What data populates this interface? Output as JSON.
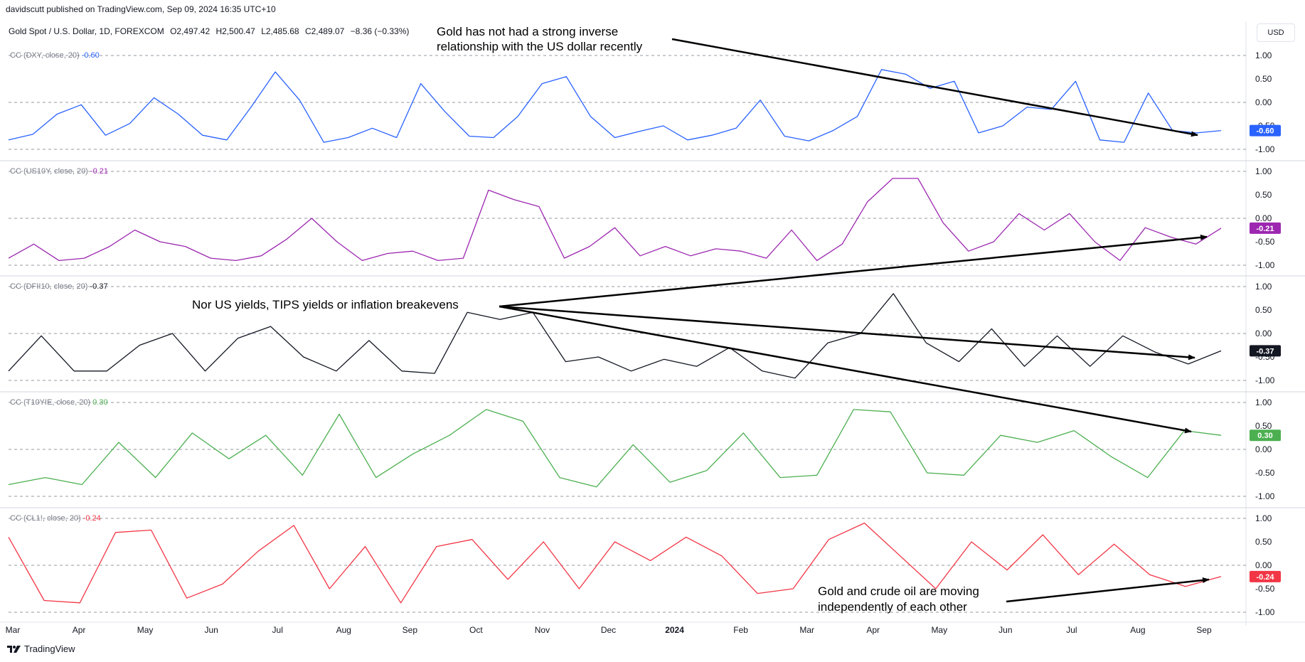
{
  "publisher": "davidscutt published on TradingView.com, Sep 09, 2024 16:35 UTC+10",
  "header": {
    "symbol": "Gold Spot / U.S. Dollar, 1D, FOREXCOM",
    "open": "O2,497.42",
    "high": "H2,500.47",
    "low": "L2,485.68",
    "close": "C2,489.07",
    "change": "−8.36 (−0.33%)"
  },
  "currency_button": "USD",
  "footer": {
    "brand": "TradingView"
  },
  "annotations": {
    "dxy_line1": "Gold has not had a strong inverse",
    "dxy_line2": "relationship with the US dollar recently",
    "yields": "Nor US yields, TIPS yields or inflation breakevens",
    "oil_line1": "Gold and crude oil are moving",
    "oil_line2": "independently of each other"
  },
  "chart_data": {
    "type": "line",
    "x_tick_labels": [
      "Mar",
      "Apr",
      "May",
      "Jun",
      "Jul",
      "Aug",
      "Sep",
      "Oct",
      "Nov",
      "Dec",
      "2024",
      "Feb",
      "Mar",
      "Apr",
      "May",
      "Jun",
      "Jul",
      "Aug",
      "Sep"
    ],
    "x_range": [
      "2023-03",
      "2024-09"
    ],
    "y_ticks": [
      "1.00",
      "0.50",
      "0.00",
      "-0.50",
      "-1.00"
    ],
    "ylim": [
      -1,
      1
    ],
    "grid": false,
    "reference_lines": [
      1,
      0,
      -1
    ],
    "panes": [
      {
        "label_prefix": "CC (DXY, close, 20)",
        "last_value": "-0.60",
        "color": "#2962ff",
        "values": [
          -0.8,
          -0.68,
          -0.25,
          -0.05,
          -0.7,
          -0.45,
          0.1,
          -0.25,
          -0.7,
          -0.8,
          -0.1,
          0.65,
          0.05,
          -0.85,
          -0.75,
          -0.55,
          -0.75,
          0.4,
          -0.2,
          -0.72,
          -0.75,
          -0.3,
          0.4,
          0.55,
          -0.3,
          -0.75,
          -0.62,
          -0.5,
          -0.8,
          -0.7,
          -0.55,
          0.05,
          -0.72,
          -0.82,
          -0.6,
          -0.3,
          0.7,
          0.6,
          0.3,
          0.45,
          -0.65,
          -0.5,
          -0.1,
          -0.15,
          0.45,
          -0.8,
          -0.85,
          0.2,
          -0.6,
          -0.65,
          -0.6
        ]
      },
      {
        "label_prefix": "CC (US10Y, close, 20)",
        "last_value": "-0.21",
        "color": "#9c27b0",
        "values": [
          -0.85,
          -0.55,
          -0.9,
          -0.85,
          -0.6,
          -0.25,
          -0.5,
          -0.6,
          -0.85,
          -0.9,
          -0.8,
          -0.45,
          0.0,
          -0.5,
          -0.9,
          -0.75,
          -0.7,
          -0.9,
          -0.85,
          0.6,
          0.4,
          0.25,
          -0.85,
          -0.6,
          -0.2,
          -0.8,
          -0.6,
          -0.8,
          -0.65,
          -0.7,
          -0.85,
          -0.25,
          -0.9,
          -0.55,
          0.35,
          0.85,
          0.85,
          -0.1,
          -0.7,
          -0.5,
          0.1,
          -0.25,
          0.1,
          -0.5,
          -0.9,
          -0.2,
          -0.4,
          -0.55,
          -0.21
        ]
      },
      {
        "label_prefix": "CC (DFII10, close, 20)",
        "last_value": "-0.37",
        "color": "#131722",
        "values": [
          -0.8,
          -0.05,
          -0.8,
          -0.8,
          -0.25,
          0.0,
          -0.8,
          -0.1,
          0.15,
          -0.5,
          -0.8,
          -0.15,
          -0.8,
          -0.85,
          0.45,
          0.3,
          0.45,
          -0.6,
          -0.5,
          -0.8,
          -0.55,
          -0.7,
          -0.3,
          -0.8,
          -0.95,
          -0.2,
          0.0,
          0.85,
          -0.2,
          -0.6,
          0.1,
          -0.7,
          -0.05,
          -0.7,
          -0.05,
          -0.4,
          -0.65,
          -0.37
        ]
      },
      {
        "label_prefix": "CC (T10YIE, close, 20)",
        "last_value": "0.30",
        "color": "#4caf50",
        "values": [
          -0.75,
          -0.6,
          -0.75,
          0.15,
          -0.6,
          0.35,
          -0.2,
          0.3,
          -0.55,
          0.75,
          -0.6,
          -0.1,
          0.3,
          0.85,
          0.6,
          -0.6,
          -0.8,
          0.1,
          -0.7,
          -0.45,
          0.35,
          -0.6,
          -0.55,
          0.85,
          0.8,
          -0.5,
          -0.55,
          0.3,
          0.15,
          0.4,
          -0.15,
          -0.6,
          0.4,
          0.3
        ]
      },
      {
        "label_prefix": "CC (CL1!, close, 20)",
        "last_value": "-0.24",
        "color": "#f23645",
        "values": [
          0.6,
          -0.75,
          -0.8,
          0.7,
          0.75,
          -0.7,
          -0.4,
          0.3,
          0.85,
          -0.5,
          0.4,
          -0.8,
          0.4,
          0.55,
          -0.3,
          0.5,
          -0.5,
          0.5,
          0.1,
          0.6,
          0.2,
          -0.6,
          -0.5,
          0.55,
          0.9,
          0.2,
          -0.5,
          0.5,
          -0.1,
          0.65,
          -0.2,
          0.45,
          -0.2,
          -0.45,
          -0.24
        ]
      }
    ]
  }
}
